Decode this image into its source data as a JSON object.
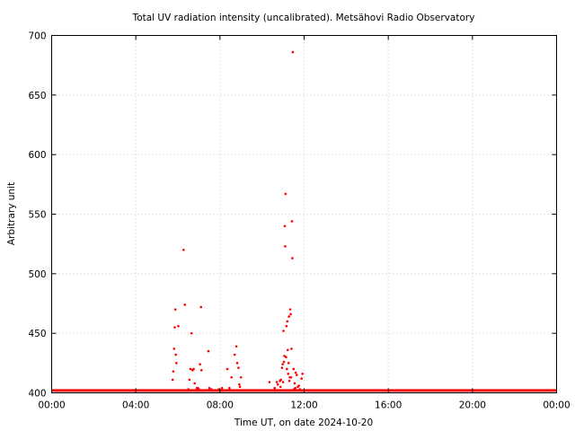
{
  "chart_data": {
    "type": "scatter",
    "title": "Total UV radiation intensity (uncalibrated). Metsähovi Radio Observatory",
    "xlabel": "Time UT, on date 2024-10-20",
    "ylabel": "Arbitrary unit",
    "xlim": [
      0,
      24
    ],
    "ylim": [
      400,
      700
    ],
    "grid": true,
    "x_tick_values": [
      0,
      4,
      8,
      12,
      16,
      20,
      24
    ],
    "x_tick_labels": [
      "00:00",
      "04:00",
      "08:00",
      "12:00",
      "16:00",
      "20:00",
      "00:00"
    ],
    "y_tick_values": [
      400,
      450,
      500,
      550,
      600,
      650,
      700
    ],
    "y_tick_labels": [
      "400",
      "450",
      "500",
      "550",
      "600",
      "650",
      "700"
    ],
    "marker_color": "#ff0000",
    "baseline": {
      "value": 402,
      "x_range": [
        0,
        24
      ]
    },
    "series": [
      {
        "points": [
          [
            5.75,
            411
          ],
          [
            5.78,
            418
          ],
          [
            5.82,
            437
          ],
          [
            5.85,
            455
          ],
          [
            5.88,
            470
          ],
          [
            5.9,
            432
          ],
          [
            5.93,
            425
          ],
          [
            6.02,
            456
          ],
          [
            6.27,
            520
          ],
          [
            6.33,
            474
          ],
          [
            6.5,
            403
          ],
          [
            6.55,
            411
          ],
          [
            6.6,
            420
          ],
          [
            6.65,
            450
          ],
          [
            6.7,
            419
          ],
          [
            6.75,
            420
          ],
          [
            6.8,
            408
          ],
          [
            6.9,
            404
          ],
          [
            6.95,
            404
          ],
          [
            7.0,
            403
          ],
          [
            7.05,
            424
          ],
          [
            7.1,
            472
          ],
          [
            7.12,
            419
          ],
          [
            7.45,
            435
          ],
          [
            7.5,
            404
          ],
          [
            7.6,
            403
          ],
          [
            7.95,
            403
          ],
          [
            8.1,
            404
          ],
          [
            8.35,
            420
          ],
          [
            8.4,
            402
          ],
          [
            8.45,
            404
          ],
          [
            8.55,
            413
          ],
          [
            8.7,
            432
          ],
          [
            8.78,
            439
          ],
          [
            8.82,
            425
          ],
          [
            8.88,
            421
          ],
          [
            8.92,
            407
          ],
          [
            8.95,
            405
          ],
          [
            9.0,
            413
          ],
          [
            10.35,
            409
          ],
          [
            10.6,
            404
          ],
          [
            10.7,
            409
          ],
          [
            10.75,
            407
          ],
          [
            10.85,
            410
          ],
          [
            10.88,
            405
          ],
          [
            10.9,
            411
          ],
          [
            10.95,
            421
          ],
          [
            10.98,
            424
          ],
          [
            11.0,
            409
          ],
          [
            11.02,
            452
          ],
          [
            11.04,
            426
          ],
          [
            11.06,
            431
          ],
          [
            11.08,
            540
          ],
          [
            11.1,
            523
          ],
          [
            11.12,
            567
          ],
          [
            11.14,
            430
          ],
          [
            11.16,
            456
          ],
          [
            11.18,
            420
          ],
          [
            11.2,
            460
          ],
          [
            11.22,
            436
          ],
          [
            11.24,
            416
          ],
          [
            11.26,
            425
          ],
          [
            11.28,
            464
          ],
          [
            11.3,
            410
          ],
          [
            11.32,
            413
          ],
          [
            11.34,
            470
          ],
          [
            11.36,
            466
          ],
          [
            11.38,
            413
          ],
          [
            11.4,
            437
          ],
          [
            11.42,
            544
          ],
          [
            11.44,
            513
          ],
          [
            11.46,
            686
          ],
          [
            11.5,
            420
          ],
          [
            11.52,
            403
          ],
          [
            11.55,
            408
          ],
          [
            11.58,
            404
          ],
          [
            11.6,
            417
          ],
          [
            11.65,
            415
          ],
          [
            11.7,
            405
          ],
          [
            11.75,
            406
          ],
          [
            11.8,
            403
          ],
          [
            11.88,
            412
          ],
          [
            11.92,
            416
          ]
        ]
      }
    ]
  }
}
